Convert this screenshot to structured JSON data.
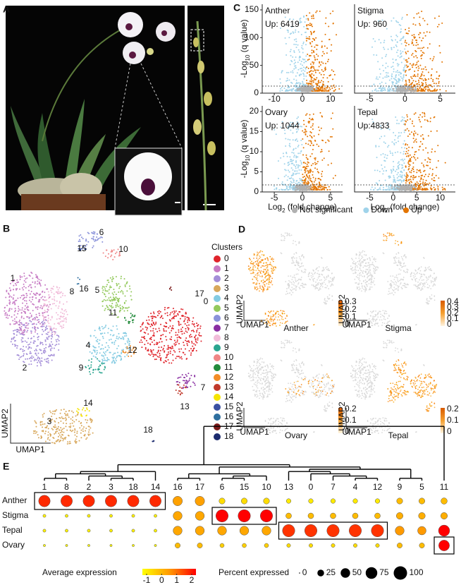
{
  "panel_labels": [
    "A",
    "B",
    "C",
    "D",
    "E"
  ],
  "volcano": {
    "y_label": [
      "-Log",
      "10",
      " (q value)"
    ],
    "x_label": [
      "Log",
      "2",
      " (fold change)"
    ],
    "plots": [
      {
        "name": "Anther",
        "up": "Up: 6419",
        "xticks": [
          "-10",
          "0",
          "10"
        ],
        "yticks": [
          "0",
          "50",
          "100",
          "150"
        ]
      },
      {
        "name": "Stigma",
        "up": "Up: 960",
        "xticks": [
          "-5",
          "0",
          "5"
        ]
      },
      {
        "name": "Ovary",
        "up": "Up: 1044",
        "xticks": [
          "-5",
          "0",
          "5"
        ],
        "yticks": [
          "0",
          "5",
          "10",
          "15",
          "20"
        ]
      },
      {
        "name": "Tepal",
        "up": "Up:4833",
        "xticks": [
          "-5",
          "0",
          "5",
          "10"
        ]
      }
    ],
    "legend": [
      {
        "label": "Not significant",
        "color": "#b0b0b0"
      },
      {
        "label": "Down",
        "color": "#9fd3ea"
      },
      {
        "label": "Up",
        "color": "#e37400"
      }
    ]
  },
  "umap": {
    "legend_title": "Clusters",
    "x_label": "UMAP1",
    "y_label": "UMAP2",
    "clusters": [
      {
        "label": "0",
        "color": "#e0242b"
      },
      {
        "label": "1",
        "color": "#c77cc4"
      },
      {
        "label": "2",
        "color": "#a48ed8"
      },
      {
        "label": "3",
        "color": "#d8a85c"
      },
      {
        "label": "4",
        "color": "#84cbe2"
      },
      {
        "label": "5",
        "color": "#93c95c"
      },
      {
        "label": "6",
        "color": "#8a92da"
      },
      {
        "label": "7",
        "color": "#8a2fa2"
      },
      {
        "label": "8",
        "color": "#f1bcd9"
      },
      {
        "label": "9",
        "color": "#2aa58f"
      },
      {
        "label": "10",
        "color": "#f08585"
      },
      {
        "label": "11",
        "color": "#238b3c"
      },
      {
        "label": "12",
        "color": "#f28c28"
      },
      {
        "label": "13",
        "color": "#c0392b"
      },
      {
        "label": "14",
        "color": "#f5e400"
      },
      {
        "label": "15",
        "color": "#3a50a2"
      },
      {
        "label": "16",
        "color": "#2f6f9f"
      },
      {
        "label": "17",
        "color": "#7b1a1a"
      },
      {
        "label": "18",
        "color": "#1c2b6e"
      }
    ]
  },
  "expression_umap": {
    "x_label": "UMAP1",
    "y_label": "UMAP2",
    "panels": [
      {
        "name": "Anther",
        "ticks": [
          "0",
          "0.1",
          "0.2",
          "0.3"
        ]
      },
      {
        "name": "Stigma",
        "ticks": [
          "0",
          "0.1",
          "0.2",
          "0.3",
          "0.4"
        ]
      },
      {
        "name": "Ovary",
        "ticks": [
          "0",
          "0.1",
          "0.2"
        ]
      },
      {
        "name": "Tepal",
        "ticks": [
          "0",
          "0.1",
          "0.2"
        ]
      }
    ]
  },
  "dotplot": {
    "columns": [
      "1",
      "8",
      "2",
      "3",
      "18",
      "14",
      "16",
      "17",
      "6",
      "15",
      "10",
      "13",
      "0",
      "7",
      "4",
      "12",
      "9",
      "5",
      "11"
    ],
    "rows": [
      "Anther",
      "Stigma",
      "Tepal",
      "Ovary"
    ],
    "percent": [
      [
        75,
        75,
        75,
        75,
        75,
        75,
        50,
        50,
        20,
        20,
        20,
        12,
        12,
        12,
        12,
        12,
        20,
        20,
        22
      ],
      [
        5,
        5,
        5,
        5,
        5,
        5,
        45,
        45,
        85,
        85,
        85,
        18,
        18,
        18,
        18,
        18,
        25,
        25,
        25
      ],
      [
        5,
        5,
        5,
        5,
        5,
        5,
        45,
        45,
        45,
        45,
        45,
        85,
        85,
        85,
        85,
        85,
        45,
        40,
        70
      ],
      [
        3,
        3,
        3,
        3,
        3,
        3,
        15,
        15,
        10,
        10,
        10,
        8,
        8,
        8,
        8,
        8,
        15,
        15,
        65
      ]
    ],
    "expression": [
      [
        1.6,
        1.6,
        1.6,
        1.6,
        1.6,
        1.6,
        0.4,
        0.4,
        -0.5,
        -0.5,
        -0.5,
        -0.7,
        -0.7,
        -0.7,
        -0.7,
        -0.7,
        0,
        0,
        0
      ],
      [
        -0.8,
        -0.8,
        -0.8,
        -0.8,
        -0.8,
        -0.8,
        0.3,
        0.3,
        2,
        2,
        2,
        0,
        0,
        0,
        0,
        0,
        0.2,
        0.2,
        0.2
      ],
      [
        -0.8,
        -0.8,
        -0.8,
        -0.8,
        -0.8,
        -0.8,
        0.3,
        0.3,
        0.3,
        0.3,
        0.3,
        1.5,
        1.5,
        1.5,
        1.5,
        1.5,
        0.5,
        0.5,
        2.6
      ],
      [
        -0.9,
        -0.9,
        -0.9,
        -0.9,
        -0.9,
        -0.9,
        0,
        0,
        -0.3,
        -0.3,
        -0.3,
        -0.5,
        -0.5,
        -0.5,
        -0.5,
        -0.5,
        0,
        0,
        2.8
      ]
    ],
    "color_legend_title": "Average expression",
    "color_ticks": [
      -1,
      0,
      1,
      2
    ],
    "size_legend_title": "Percent expressed",
    "size_ticks": [
      0,
      25,
      50,
      75,
      100
    ]
  }
}
